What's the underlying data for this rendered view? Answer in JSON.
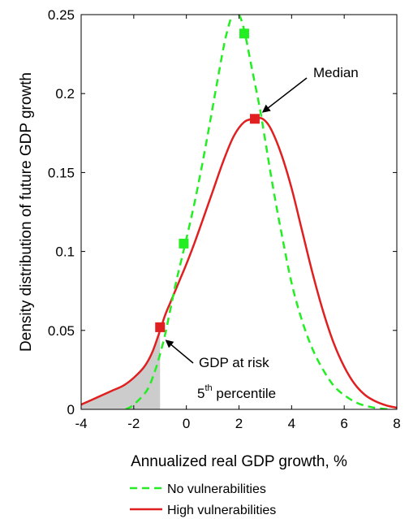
{
  "chart_data": {
    "type": "line",
    "title": "",
    "xlabel": "Annualized real GDP growth, %",
    "ylabel": "Density distribution of future GDP growth",
    "xlim": [
      -4,
      8
    ],
    "ylim": [
      0,
      0.25
    ],
    "x_ticks": [
      -4,
      -2,
      0,
      2,
      4,
      6,
      8
    ],
    "y_ticks": [
      0,
      0.05,
      0.1,
      0.15,
      0.2,
      0.25
    ],
    "x_tick_labels": [
      "-4",
      "-2",
      "0",
      "2",
      "4",
      "6",
      "8"
    ],
    "y_tick_labels": [
      "0",
      "0.05",
      "0.1",
      "0.15",
      "0.2",
      "0.25"
    ],
    "grid": false,
    "legend_position": "bottom",
    "series": [
      {
        "name": "No vulnerabilities",
        "color": "#22ee22",
        "style": "dashed",
        "x": [
          -2.3,
          -2.0,
          -1.5,
          -1.2,
          -1.0,
          -0.8,
          -0.6,
          -0.4,
          -0.2,
          0.0,
          0.3,
          0.6,
          0.9,
          1.2,
          1.5,
          1.8,
          2.0,
          2.2,
          2.5,
          2.8,
          3.0,
          3.3,
          3.6,
          4.0,
          4.4,
          4.8,
          5.2,
          5.6,
          6.0,
          6.5,
          7.0,
          7.5,
          7.8
        ],
        "y": [
          0.0,
          0.003,
          0.012,
          0.024,
          0.035,
          0.048,
          0.064,
          0.08,
          0.094,
          0.108,
          0.13,
          0.155,
          0.182,
          0.21,
          0.236,
          0.252,
          0.25,
          0.24,
          0.215,
          0.19,
          0.17,
          0.14,
          0.113,
          0.08,
          0.056,
          0.038,
          0.025,
          0.015,
          0.009,
          0.004,
          0.0015,
          0.0003,
          0.0
        ]
      },
      {
        "name": "High vulnerabilities",
        "color": "#e02020",
        "style": "solid",
        "x": [
          -4.0,
          -3.6,
          -3.2,
          -2.8,
          -2.4,
          -2.0,
          -1.6,
          -1.3,
          -1.0,
          -0.8,
          -0.6,
          -0.4,
          -0.2,
          0.0,
          0.3,
          0.6,
          1.0,
          1.4,
          1.8,
          2.2,
          2.6,
          2.9,
          3.2,
          3.6,
          4.0,
          4.4,
          4.8,
          5.2,
          5.6,
          6.0,
          6.4,
          6.8,
          7.2,
          7.6,
          8.0
        ],
        "y": [
          0.003,
          0.006,
          0.009,
          0.012,
          0.015,
          0.02,
          0.027,
          0.036,
          0.05,
          0.06,
          0.068,
          0.076,
          0.084,
          0.092,
          0.105,
          0.119,
          0.138,
          0.157,
          0.173,
          0.182,
          0.184,
          0.184,
          0.178,
          0.162,
          0.14,
          0.113,
          0.086,
          0.062,
          0.042,
          0.027,
          0.016,
          0.009,
          0.005,
          0.0025,
          0.001
        ]
      }
    ],
    "markers": [
      {
        "series": "No vulnerabilities",
        "x": -0.1,
        "y": 0.105
      },
      {
        "series": "No vulnerabilities",
        "x": 2.2,
        "y": 0.238
      },
      {
        "series": "High vulnerabilities",
        "x": -1.0,
        "y": 0.052
      },
      {
        "series": "High vulnerabilities",
        "x": 2.6,
        "y": 0.184
      }
    ],
    "shaded_area": {
      "series": "High vulnerabilities",
      "x_from": -4.0,
      "x_to": -1.0,
      "color": "#cccccc"
    },
    "annotations": [
      {
        "text": "Median",
        "points_to_x": 2.8,
        "points_to_y": 0.187
      },
      {
        "text": "GDP at risk",
        "points_to_x": -0.85,
        "points_to_y": 0.045
      },
      {
        "text": "5",
        "superscript": "th",
        "rest": " percentile"
      }
    ]
  }
}
